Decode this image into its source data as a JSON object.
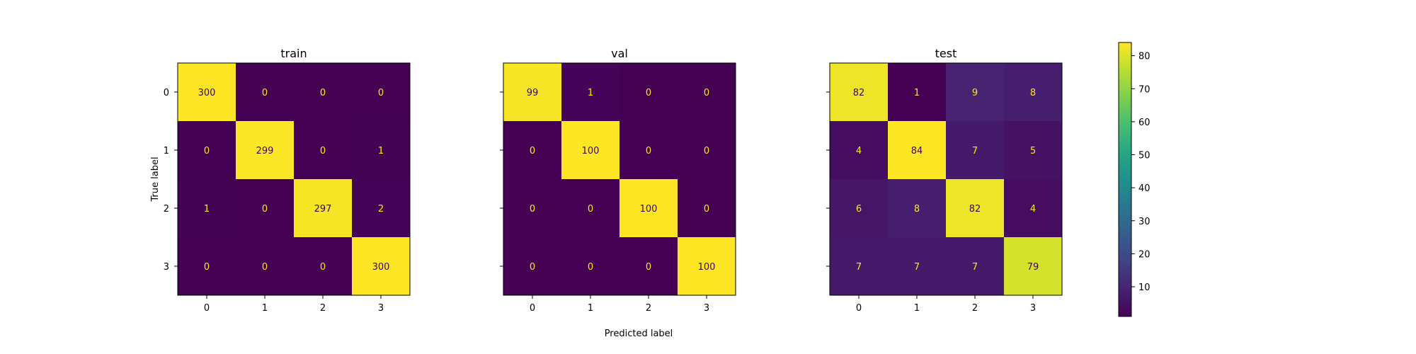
{
  "chart_data": [
    {
      "type": "heatmap",
      "title": "train",
      "categories_x": [
        "0",
        "1",
        "2",
        "3"
      ],
      "categories_y": [
        "0",
        "1",
        "2",
        "3"
      ],
      "matrix": [
        [
          300,
          0,
          0,
          0
        ],
        [
          0,
          299,
          0,
          1
        ],
        [
          1,
          0,
          297,
          2
        ],
        [
          0,
          0,
          0,
          300
        ]
      ],
      "ylabel": "True label",
      "show_ytick_labels": true
    },
    {
      "type": "heatmap",
      "title": "val",
      "categories_x": [
        "0",
        "1",
        "2",
        "3"
      ],
      "categories_y": [
        "0",
        "1",
        "2",
        "3"
      ],
      "matrix": [
        [
          99,
          1,
          0,
          0
        ],
        [
          0,
          100,
          0,
          0
        ],
        [
          0,
          0,
          100,
          0
        ],
        [
          0,
          0,
          0,
          100
        ]
      ],
      "xlabel": "Predicted label",
      "show_ytick_labels": false
    },
    {
      "type": "heatmap",
      "title": "test",
      "categories_x": [
        "0",
        "1",
        "2",
        "3"
      ],
      "categories_y": [
        "0",
        "1",
        "2",
        "3"
      ],
      "matrix": [
        [
          82,
          1,
          9,
          8
        ],
        [
          4,
          84,
          7,
          5
        ],
        [
          6,
          8,
          82,
          4
        ],
        [
          7,
          7,
          7,
          79
        ]
      ],
      "show_ytick_labels": false
    }
  ],
  "colorbar": {
    "colormap": "viridis",
    "range": [
      1,
      84
    ],
    "ticks": [
      10,
      20,
      30,
      40,
      50,
      60,
      70,
      80
    ]
  },
  "colors": {
    "text_on_dark": "#fde725",
    "text_on_light": "#440154"
  }
}
